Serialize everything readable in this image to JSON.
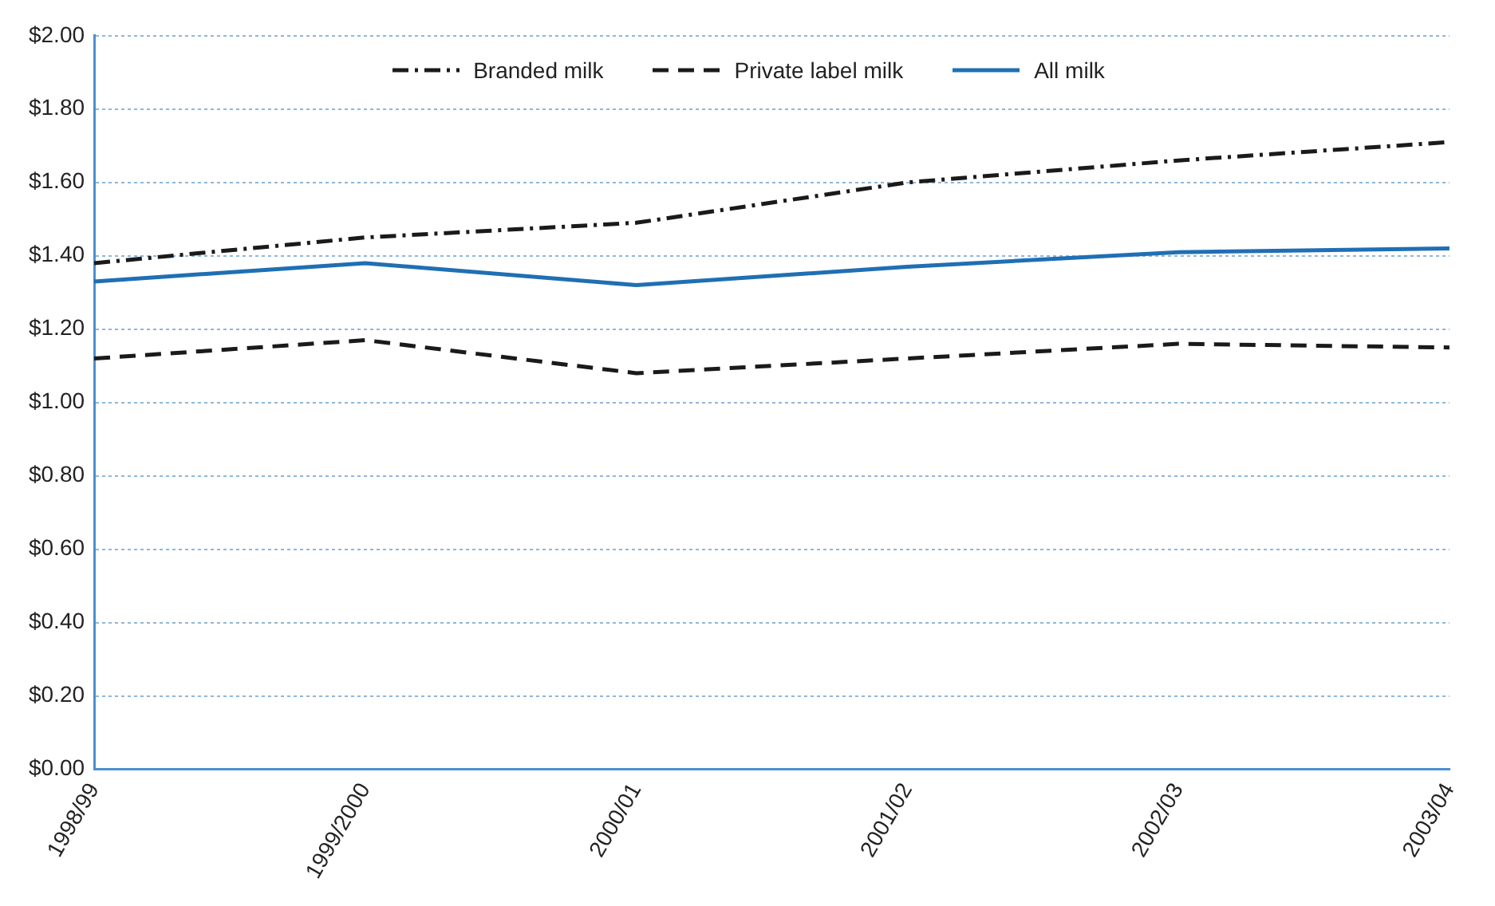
{
  "chart_data": {
    "type": "line",
    "categories": [
      "1998/99",
      "1999/2000",
      "2000/01",
      "2001/02",
      "2002/03",
      "2003/04"
    ],
    "series": [
      {
        "name": "Branded milk",
        "color": "#1a1a1a",
        "line_style": "dashdot",
        "values": [
          1.38,
          1.45,
          1.49,
          1.6,
          1.66,
          1.71
        ]
      },
      {
        "name": "Private label milk",
        "color": "#1a1a1a",
        "line_style": "dashed",
        "values": [
          1.12,
          1.17,
          1.08,
          1.12,
          1.16,
          1.15
        ]
      },
      {
        "name": "All milk",
        "color": "#1f6fb4",
        "line_style": "solid",
        "values": [
          1.33,
          1.38,
          1.32,
          1.37,
          1.41,
          1.42
        ]
      }
    ],
    "ylim": [
      0,
      2
    ],
    "yticks": [
      {
        "value": 0,
        "label": "$0.00"
      },
      {
        "value": 0.2,
        "label": "$0.20"
      },
      {
        "value": 0.4,
        "label": "$0.40"
      },
      {
        "value": 0.6,
        "label": "$0.60"
      },
      {
        "value": 0.8,
        "label": "$0.80"
      },
      {
        "value": 1,
        "label": "$1.00"
      },
      {
        "value": 1.2,
        "label": "$1.20"
      },
      {
        "value": 1.4,
        "label": "$1.40"
      },
      {
        "value": 1.6,
        "label": "$1.60"
      },
      {
        "value": 1.8,
        "label": "$1.80"
      },
      {
        "value": 2,
        "label": "$2.00"
      }
    ],
    "grid": "y",
    "legend": "top",
    "marker": "none"
  }
}
